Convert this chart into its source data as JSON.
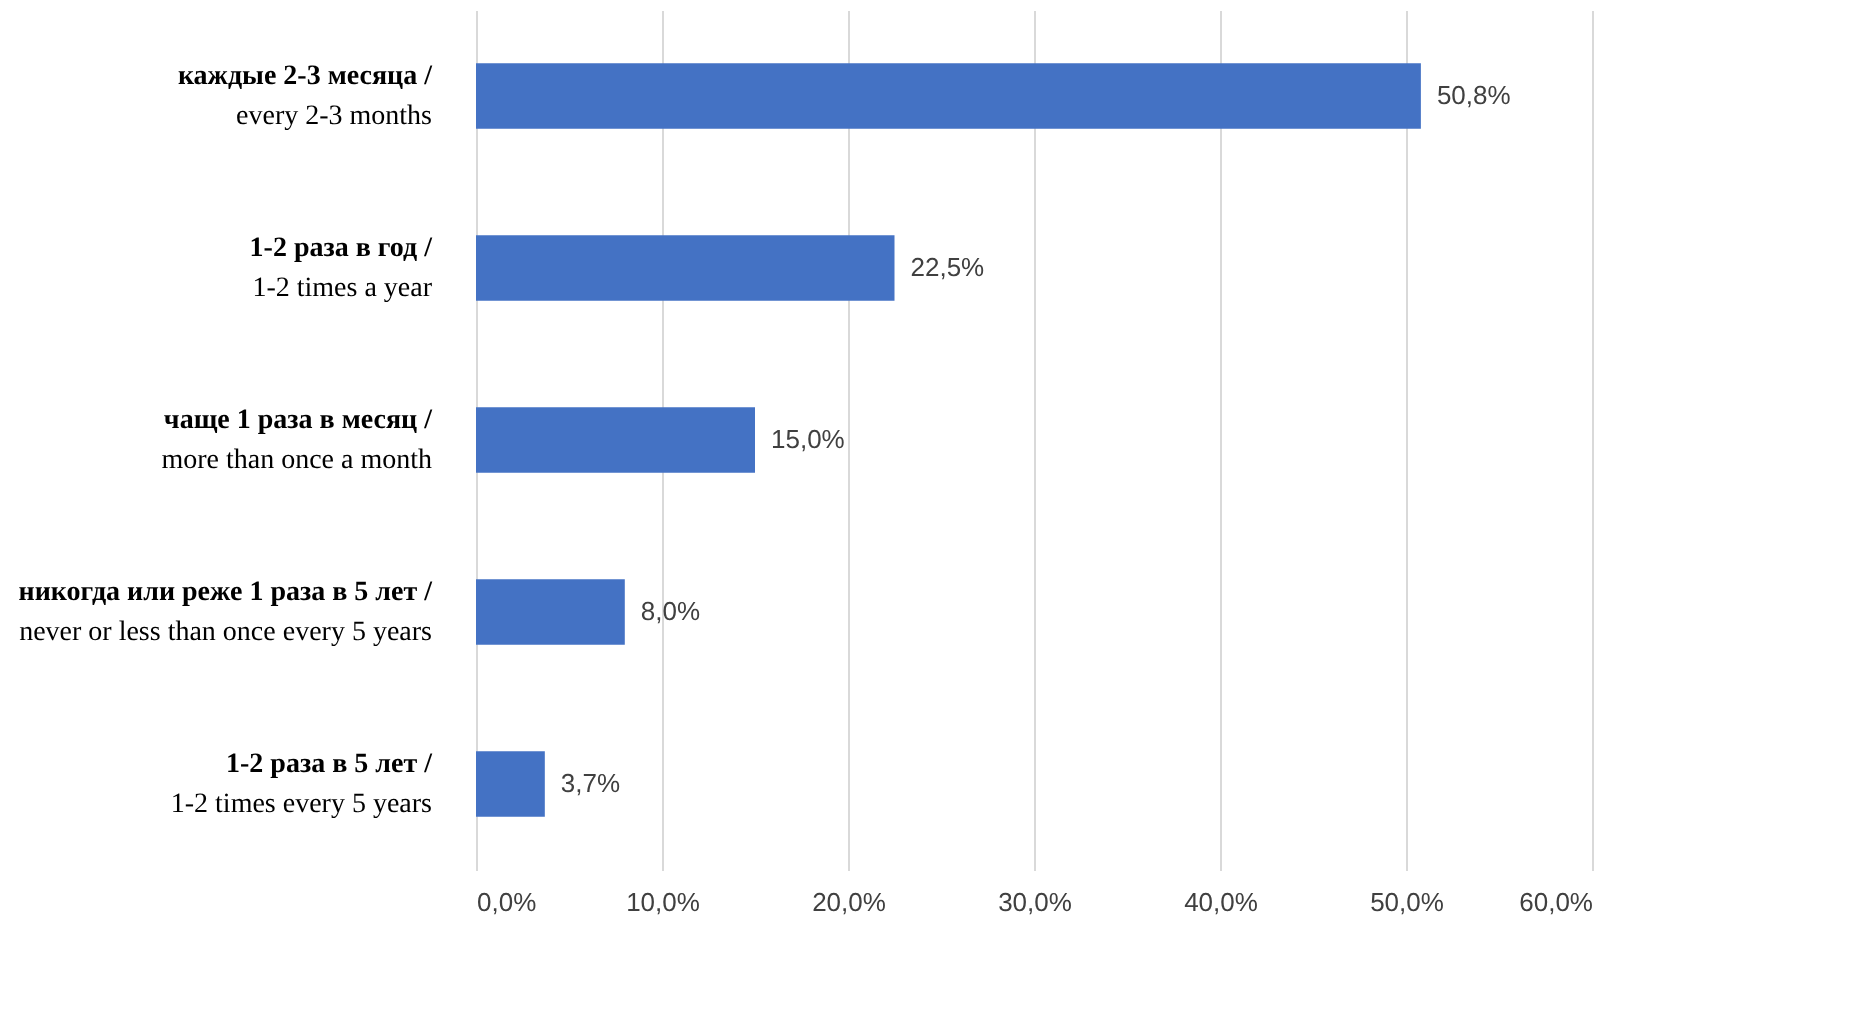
{
  "chart_data": {
    "type": "bar",
    "orientation": "horizontal",
    "categories": [
      "каждые 2-3 месяца /\nevery 2-3 months",
      "1-2 раза в год /\n1-2 times a year",
      "чаще 1 раза в месяц /\nmore than once a month",
      "никогда или реже 1 раза  в 5 лет /\nnever or less than once every 5 years",
      "1-2  раза  в  5  лет  /\n1-2 times every 5 years"
    ],
    "values": [
      50.8,
      22.5,
      15.0,
      8.0,
      3.7
    ],
    "value_labels": [
      "50,8%",
      "22,5%",
      "15,0%",
      "8,0%",
      "3,7%"
    ],
    "color": "#4472c4",
    "xlim": [
      0,
      60
    ],
    "xticks": [
      {
        "value": 0,
        "label": "0,0%"
      },
      {
        "value": 10,
        "label": "10,0%"
      },
      {
        "value": 20,
        "label": "20,0%"
      },
      {
        "value": 30,
        "label": "30,0%"
      },
      {
        "value": 40,
        "label": "40,0%"
      },
      {
        "value": 50,
        "label": "50,0%"
      },
      {
        "value": 60,
        "label": "60,0%"
      }
    ],
    "grid": "x"
  }
}
